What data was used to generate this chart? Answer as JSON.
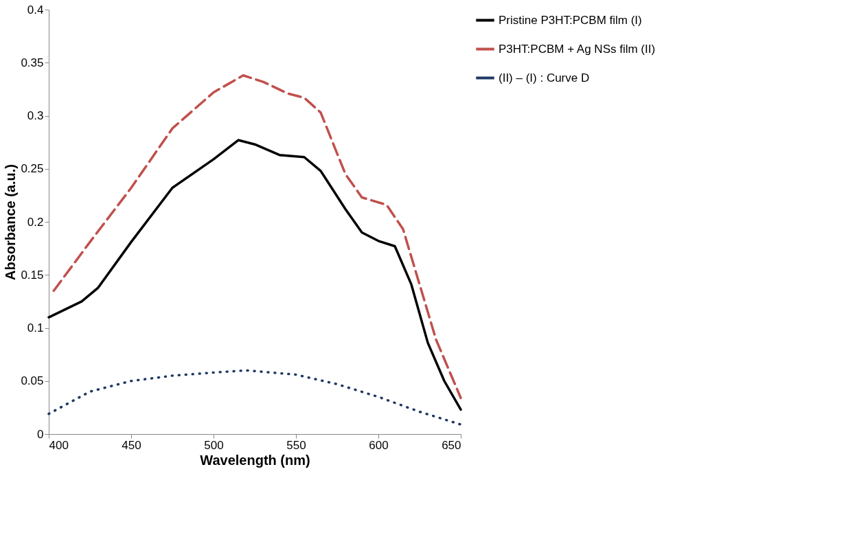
{
  "chart_data": {
    "type": "line",
    "xlabel": "Wavelength (nm)",
    "ylabel": "Absorbance (a.u.)",
    "xlim": [
      400,
      650
    ],
    "xticks": [
      400,
      450,
      500,
      550,
      600,
      650
    ],
    "ylim": [
      0,
      0.4
    ],
    "yticks": [
      0,
      0.05,
      0.1,
      0.15,
      0.2,
      0.25,
      0.3,
      0.35,
      0.4
    ],
    "grid": false,
    "legend": "right",
    "series": [
      {
        "name": "Pristine P3HT:PCBM film (I)",
        "color": "#000000",
        "line_style": "solid",
        "x": [
          400,
          420,
          430,
          450,
          475,
          500,
          515,
          525,
          540,
          555,
          565,
          580,
          590,
          600,
          610,
          620,
          630,
          640,
          650
        ],
        "values": [
          0.11,
          0.125,
          0.138,
          0.181,
          0.232,
          0.259,
          0.277,
          0.273,
          0.263,
          0.261,
          0.248,
          0.212,
          0.19,
          0.182,
          0.177,
          0.141,
          0.086,
          0.05,
          0.023
        ]
      },
      {
        "name": "P3HT:PCBM + Ag NSs film (II)",
        "color": "#c0504d",
        "line_style": "dashed",
        "x": [
          403,
          425,
          450,
          475,
          500,
          518,
          530,
          545,
          555,
          565,
          580,
          590,
          605,
          615,
          625,
          635,
          650
        ],
        "values": [
          0.135,
          0.181,
          0.232,
          0.288,
          0.322,
          0.338,
          0.332,
          0.321,
          0.317,
          0.303,
          0.245,
          0.223,
          0.216,
          0.193,
          0.141,
          0.089,
          0.034
        ]
      },
      {
        "name": "(II) – (I) : Curve D",
        "color": "#1f3864",
        "line_style": "dotted",
        "x": [
          400,
          425,
          450,
          475,
          500,
          520,
          550,
          575,
          600,
          625,
          650
        ],
        "values": [
          0.019,
          0.04,
          0.05,
          0.055,
          0.058,
          0.06,
          0.056,
          0.047,
          0.035,
          0.021,
          0.009
        ]
      }
    ]
  }
}
